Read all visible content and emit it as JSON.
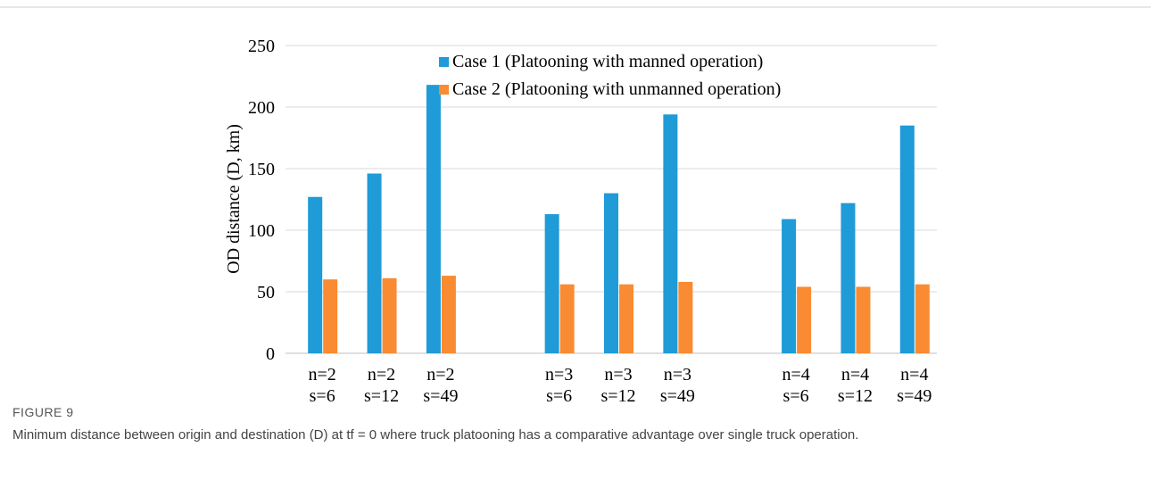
{
  "chart_data": {
    "type": "bar",
    "y_label": "OD distance (D, km)",
    "categories": [
      [
        "n=2",
        "s=6"
      ],
      [
        "n=2",
        "s=12"
      ],
      [
        "n=2",
        "s=49"
      ],
      null,
      [
        "n=3",
        "s=6"
      ],
      [
        "n=3",
        "s=12"
      ],
      [
        "n=3",
        "s=49"
      ],
      null,
      [
        "n=4",
        "s=6"
      ],
      [
        "n=4",
        "s=12"
      ],
      [
        "n=4",
        "s=49"
      ]
    ],
    "series": [
      {
        "name": "Case 1 (Platooning with manned operation)",
        "color": "#1f9bd7",
        "values": [
          127,
          146,
          218,
          null,
          113,
          130,
          194,
          null,
          109,
          122,
          185
        ]
      },
      {
        "name": "Case 2 (Platooning with unmanned operation)",
        "color": "#f98b32",
        "values": [
          60,
          61,
          63,
          null,
          56,
          56,
          58,
          null,
          54,
          54,
          56
        ]
      }
    ],
    "ylim": [
      0,
      250
    ],
    "yticks": [
      0,
      50,
      100,
      150,
      200,
      250
    ],
    "grid": true,
    "legend": "top-right"
  },
  "caption": {
    "label": "FIGURE 9",
    "text": "Minimum distance between origin and destination (D) at tf = 0 where truck platooning has a comparative advantage over single truck operation."
  }
}
